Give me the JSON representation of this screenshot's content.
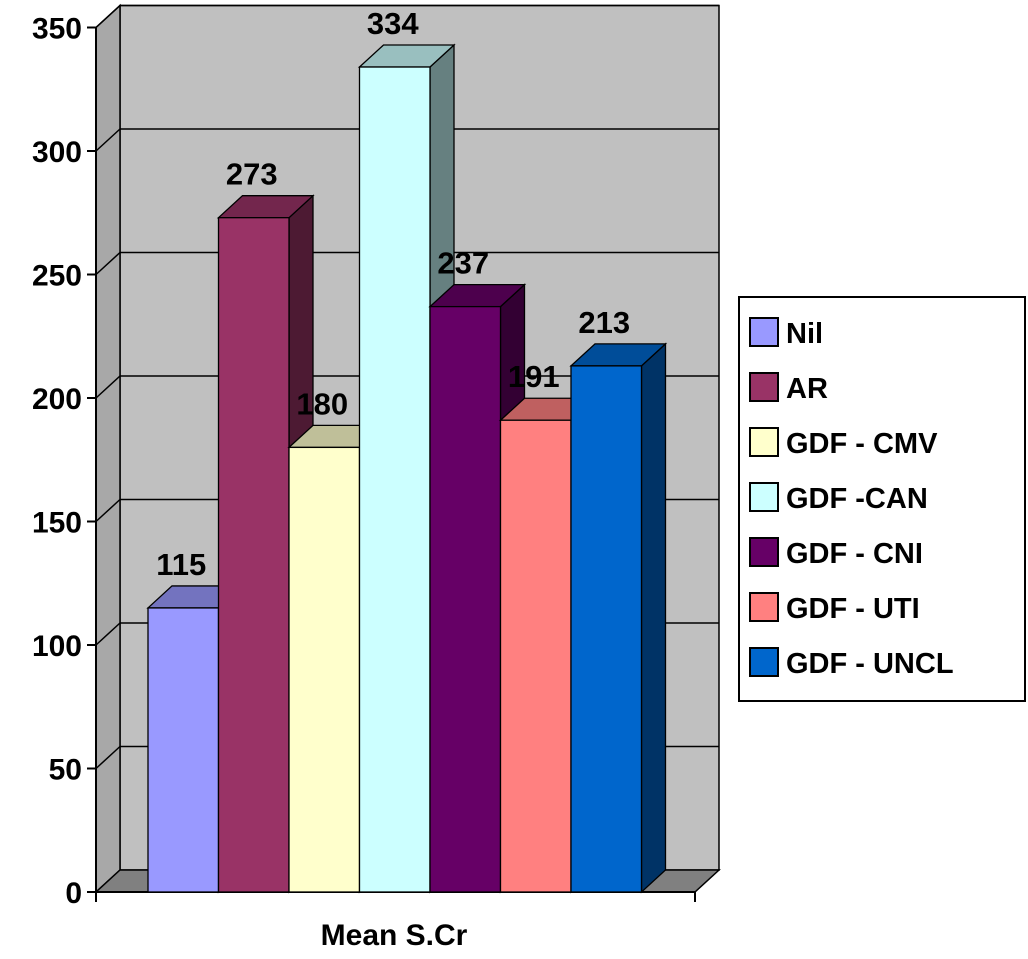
{
  "chart_data": {
    "type": "bar",
    "style": "3d-clustered-column",
    "categories": [
      "Mean S.Cr"
    ],
    "xlabel": "",
    "ylabel": "",
    "ylim": [
      0,
      350
    ],
    "yticks": [
      "0",
      "50",
      "100",
      "150",
      "200",
      "250",
      "300",
      "350"
    ],
    "grid": true,
    "legend_position": "right",
    "series": [
      {
        "name": "Nil",
        "values": [
          115
        ],
        "color": "#9999ff",
        "label": "115"
      },
      {
        "name": "AR",
        "values": [
          273
        ],
        "color": "#993366",
        "label": "273"
      },
      {
        "name": "GDF - CMV",
        "values": [
          180
        ],
        "color": "#ffffcc",
        "label": "180"
      },
      {
        "name": "GDF -CAN",
        "values": [
          334
        ],
        "color": "#ccffff",
        "label": "334"
      },
      {
        "name": "GDF - CNI",
        "values": [
          237
        ],
        "color": "#660066",
        "label": "237"
      },
      {
        "name": "GDF - UTI",
        "values": [
          191
        ],
        "color": "#ff8080",
        "label": "191"
      },
      {
        "name": "GDF - UNCL",
        "values": [
          213
        ],
        "color": "#0066cc",
        "label": "213"
      }
    ],
    "wall_color": "#c0c0c0",
    "floor_color": "#808080"
  }
}
